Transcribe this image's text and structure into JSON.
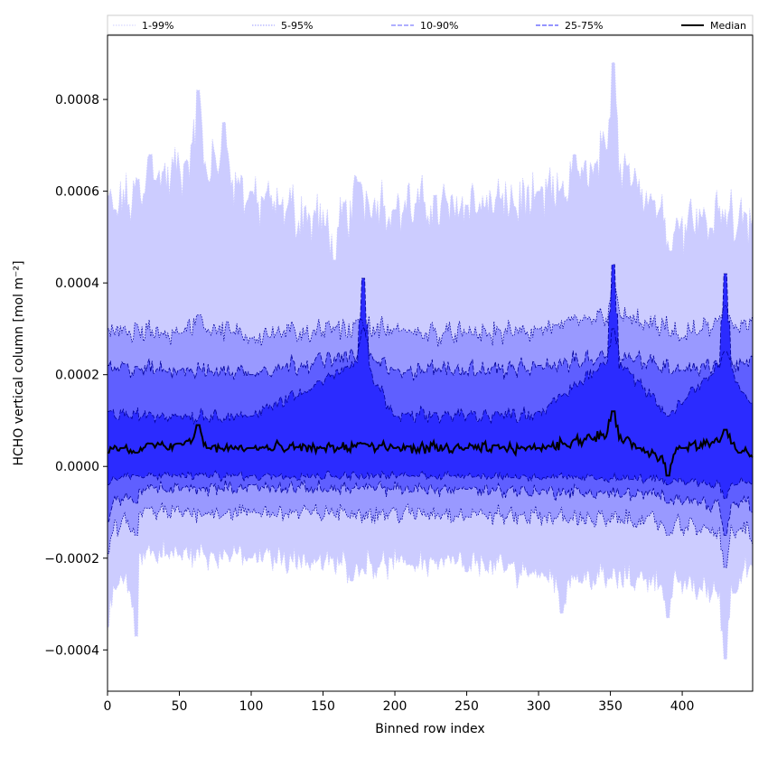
{
  "chart_data": {
    "type": "area",
    "xlabel": "Binned row index",
    "ylabel": "HCHO vertical column [mol m⁻²]",
    "xlim": [
      0,
      449
    ],
    "ylim": [
      -0.00049,
      0.00094
    ],
    "xticks": [
      0,
      50,
      100,
      150,
      200,
      250,
      300,
      350,
      400
    ],
    "yticks": [
      -0.0004,
      -0.0002,
      0.0,
      0.0002,
      0.0004,
      0.0006,
      0.0008
    ],
    "ytick_labels": [
      "−0.0004",
      "−0.0002",
      "0.0000",
      "0.0002",
      "0.0004",
      "0.0006",
      "0.0008"
    ],
    "legend_position": "top",
    "series": [
      {
        "name": "1-99%",
        "color": "#ccccff",
        "line_color": "#ccccff",
        "line_style": "dotted",
        "upper_base": 0.00057,
        "lower_base": -0.00019,
        "upper_points": [
          [
            0,
            0.00059
          ],
          [
            5,
            0.00056
          ],
          [
            30,
            0.00068
          ],
          [
            63,
            0.00082
          ],
          [
            81,
            0.00075
          ],
          [
            100,
            0.0006
          ],
          [
            120,
            0.00057
          ],
          [
            158,
            0.00045
          ],
          [
            175,
            0.00062
          ],
          [
            200,
            0.00056
          ],
          [
            250,
            0.00057
          ],
          [
            300,
            0.0006
          ],
          [
            325,
            0.00068
          ],
          [
            352,
            0.00088
          ],
          [
            380,
            0.00058
          ],
          [
            392,
            0.00047
          ],
          [
            420,
            0.00052
          ],
          [
            450,
            0.00054
          ]
        ],
        "lower_points": [
          [
            0,
            -0.00035
          ],
          [
            20,
            -0.00037
          ],
          [
            22,
            -0.00019
          ],
          [
            100,
            -0.0002
          ],
          [
            170,
            -0.00025
          ],
          [
            250,
            -0.00023
          ],
          [
            316,
            -0.00032
          ],
          [
            390,
            -0.00033
          ],
          [
            430,
            -0.00042
          ],
          [
            450,
            -0.00022
          ]
        ]
      },
      {
        "name": "5-95%",
        "color": "#9999ff",
        "line_color": "#000099",
        "line_style": "dotted",
        "upper_base": 0.00029,
        "lower_base": -0.0001,
        "upper_points": [
          [
            0,
            0.0003
          ],
          [
            50,
            0.00029
          ],
          [
            63,
            0.00033
          ],
          [
            100,
            0.00028
          ],
          [
            175,
            0.00032
          ],
          [
            200,
            0.0003
          ],
          [
            250,
            0.00029
          ],
          [
            300,
            0.0003
          ],
          [
            352,
            0.0004
          ],
          [
            400,
            0.00028
          ],
          [
            430,
            0.00035
          ],
          [
            450,
            0.00033
          ]
        ],
        "lower_points": [
          [
            0,
            -0.00019
          ],
          [
            20,
            -0.00015
          ],
          [
            22,
            -0.0001
          ],
          [
            100,
            -0.0001
          ],
          [
            250,
            -0.00011
          ],
          [
            390,
            -0.00015
          ],
          [
            430,
            -0.00022
          ],
          [
            450,
            -0.00017
          ]
        ]
      },
      {
        "name": "10-90%",
        "color": "#5f5fff",
        "line_color": "#000099",
        "line_style": "dashed",
        "upper_base": 0.00021,
        "lower_base": -5e-05,
        "upper_points": [
          [
            0,
            0.00022
          ],
          [
            50,
            0.00021
          ],
          [
            100,
            0.0002
          ],
          [
            178,
            0.0003
          ],
          [
            200,
            0.00021
          ],
          [
            300,
            0.00022
          ],
          [
            352,
            0.0003
          ],
          [
            400,
            0.00021
          ],
          [
            430,
            0.00025
          ],
          [
            450,
            0.00024
          ]
        ],
        "lower_points": [
          [
            0,
            -0.00012
          ],
          [
            20,
            -8e-05
          ],
          [
            22,
            -5e-05
          ],
          [
            100,
            -4e-05
          ],
          [
            250,
            -5e-05
          ],
          [
            390,
            -8e-05
          ],
          [
            430,
            -0.00015
          ],
          [
            450,
            -0.0001
          ]
        ]
      },
      {
        "name": "25-75%",
        "color": "#2b2bff",
        "line_color": "#000099",
        "line_style": "dashed",
        "upper_base": 0.00011,
        "lower_base": -2e-05,
        "upper_points": [
          [
            0,
            0.00012
          ],
          [
            50,
            0.00011
          ],
          [
            100,
            0.00011
          ],
          [
            178,
            0.00041
          ],
          [
            200,
            0.00011
          ],
          [
            300,
            0.00012
          ],
          [
            352,
            0.00044
          ],
          [
            390,
            0.00011
          ],
          [
            430,
            0.00042
          ],
          [
            450,
            0.00014
          ]
        ],
        "lower_points": [
          [
            0,
            -4e-05
          ],
          [
            20,
            -2e-05
          ],
          [
            100,
            -2e-05
          ],
          [
            250,
            -2e-05
          ],
          [
            390,
            -4e-05
          ],
          [
            430,
            -7e-05
          ],
          [
            450,
            -4e-05
          ]
        ]
      },
      {
        "name": "Median",
        "color": "#000000",
        "line_color": "#000000",
        "line_style": "solid",
        "points": [
          [
            0,
            3e-05
          ],
          [
            10,
            4e-05
          ],
          [
            20,
            3e-05
          ],
          [
            30,
            5e-05
          ],
          [
            50,
            5e-05
          ],
          [
            63,
            9e-05
          ],
          [
            70,
            4e-05
          ],
          [
            100,
            4e-05
          ],
          [
            150,
            4e-05
          ],
          [
            178,
            5e-05
          ],
          [
            200,
            4e-05
          ],
          [
            250,
            4e-05
          ],
          [
            300,
            4e-05
          ],
          [
            352,
            0.00012
          ],
          [
            370,
            4e-05
          ],
          [
            390,
            -2e-05
          ],
          [
            400,
            4e-05
          ],
          [
            430,
            8e-05
          ],
          [
            440,
            3e-05
          ],
          [
            450,
            2e-05
          ]
        ]
      }
    ]
  }
}
